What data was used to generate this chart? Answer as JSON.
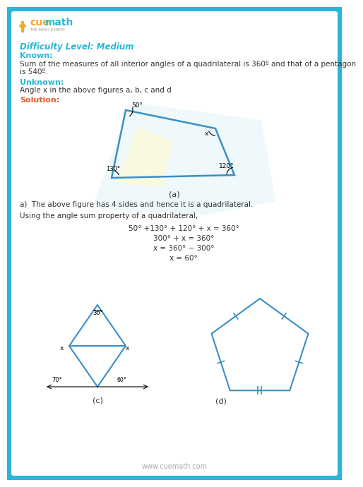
{
  "bg_color": "#ffffff",
  "outer_bg": "#29b6d8",
  "inner_bg": "#f0fafd",
  "shape_color": "#3a8fc4",
  "text_color": "#333333",
  "known_color": "#29b6d8",
  "solution_color": "#e05c2a",
  "difficulty_color": "#29b6d8",
  "footer_color": "#aaaaaa",
  "cue_orange": "#f5a623",
  "cue_blue": "#29b6d8",
  "difficulty_text": "Difficulty Level: Medium",
  "known_label": "Known:",
  "known_text1": "Sum of the measures of all interior angles of a quadrilateral is 360º and that of a pentagon",
  "known_text2": "is 540º.",
  "unknown_label": "Unknown:",
  "unknown_text": "Angle x in the above figures a, b, c and d",
  "solution_label": "Solution:",
  "below_fig_text": "a)  The above figure has 4 sides and hence it is a quadrilateral.",
  "using_text": "Using the angle sum property of a quadrilateral,",
  "eq1": "50° +130° + 120° + x = 360°",
  "eq2": "300° + x = 360°",
  "eq3": "x = 360° − 300°",
  "eq4": "x = 60°",
  "footer_text": "www.cuemath.com",
  "fig_a_label": "(a)",
  "fig_c_label": "(c)",
  "fig_d_label": "(d)"
}
